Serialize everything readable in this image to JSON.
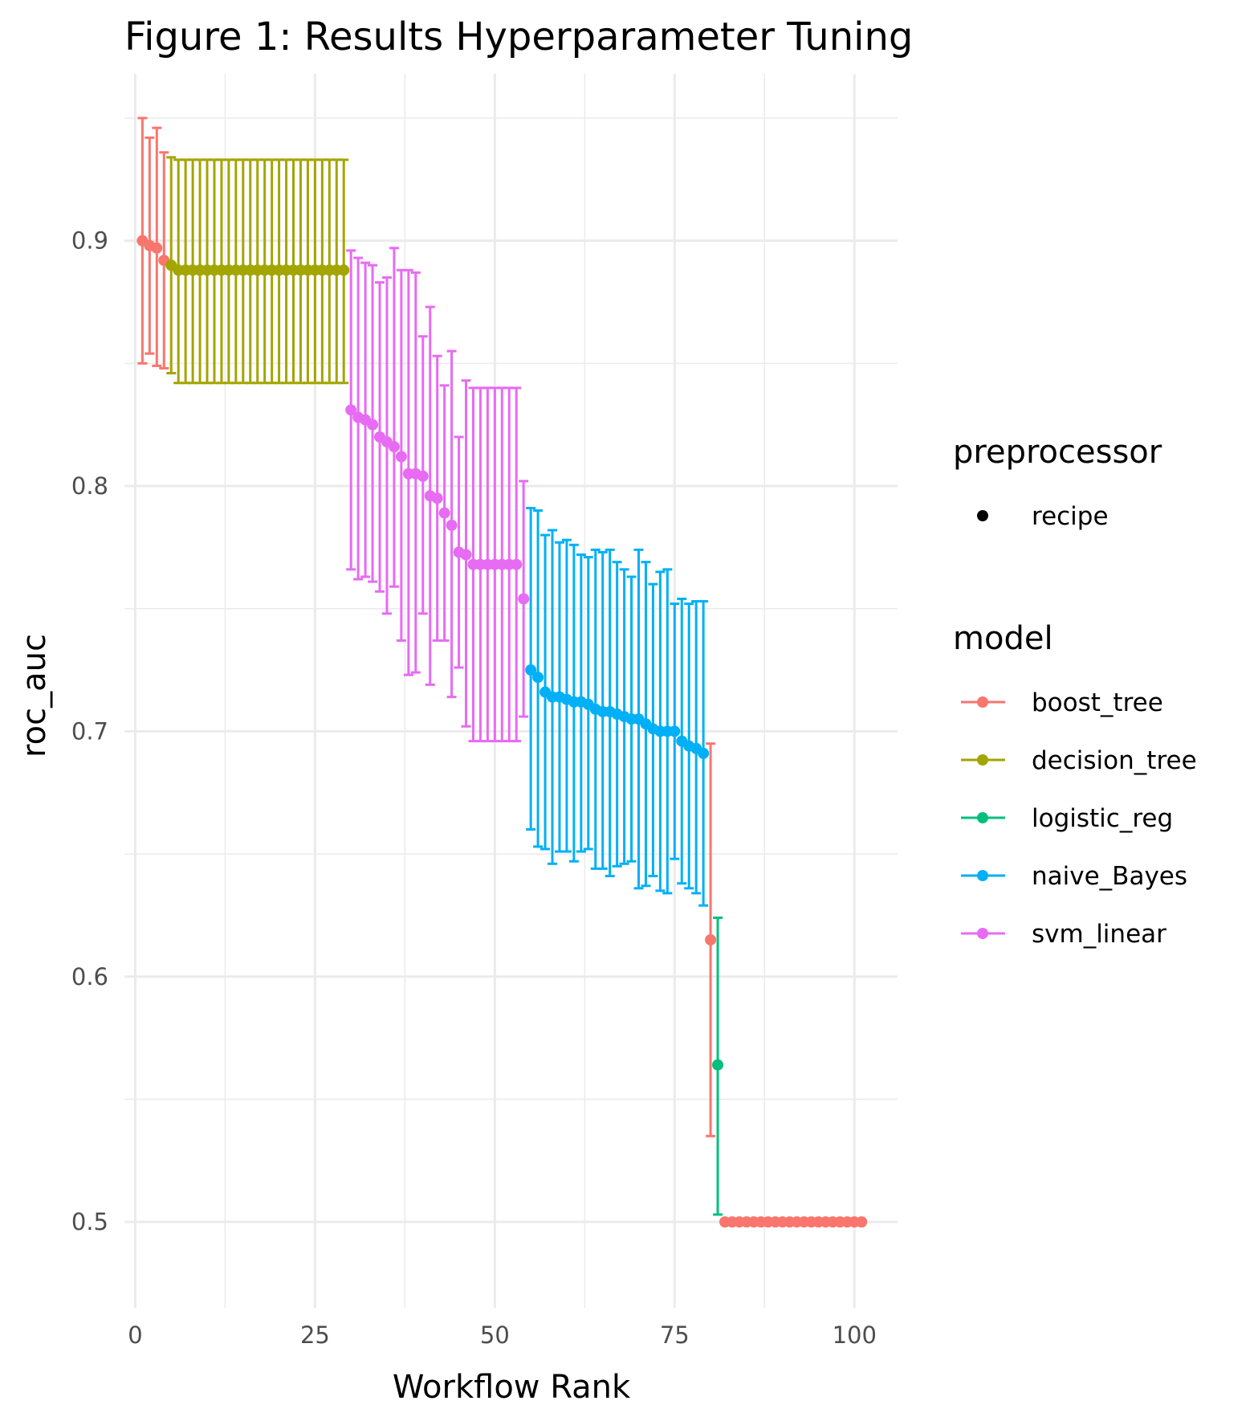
{
  "chart_data": {
    "type": "scatter",
    "title": "Figure 1: Results Hyperparameter Tuning",
    "xlabel": "Workflow Rank",
    "ylabel": "roc_auc",
    "xlim": [
      -1.5,
      106
    ],
    "ylim": [
      0.465,
      0.968
    ],
    "x_ticks": [
      0,
      25,
      50,
      75,
      100
    ],
    "x_tick_labels": [
      "0",
      "25",
      "50",
      "75",
      "100"
    ],
    "y_ticks": [
      0.5,
      0.6,
      0.7,
      0.8,
      0.9
    ],
    "y_tick_labels": [
      "0.5",
      "0.6",
      "0.7",
      "0.8",
      "0.9"
    ],
    "grid": true,
    "error_bars": true,
    "legend_position": "right",
    "legend": {
      "preprocessor": {
        "title": "preprocessor",
        "items": [
          {
            "label": "recipe"
          }
        ]
      },
      "model": {
        "title": "model",
        "items": [
          {
            "label": "boost_tree",
            "color": "#F8766D"
          },
          {
            "label": "decision_tree",
            "color": "#A3A500"
          },
          {
            "label": "logistic_reg",
            "color": "#00BF7D"
          },
          {
            "label": "naive_Bayes",
            "color": "#00B0F6"
          },
          {
            "label": "svm_linear",
            "color": "#E76BF3"
          }
        ]
      }
    },
    "series": [
      {
        "name": "boost_tree",
        "color": "#F8766D",
        "x": [
          1,
          2,
          3,
          4,
          80,
          82,
          83,
          84,
          85,
          86,
          87,
          88,
          89,
          90,
          91,
          92,
          93,
          94,
          95,
          96,
          97,
          98,
          99,
          100,
          101
        ],
        "y": [
          0.9,
          0.898,
          0.897,
          0.892,
          0.615,
          0.5,
          0.5,
          0.5,
          0.5,
          0.5,
          0.5,
          0.5,
          0.5,
          0.5,
          0.5,
          0.5,
          0.5,
          0.5,
          0.5,
          0.5,
          0.5,
          0.5,
          0.5,
          0.5,
          0.5
        ],
        "lower": [
          0.85,
          0.854,
          0.849,
          0.848,
          0.535,
          0.5,
          0.5,
          0.5,
          0.5,
          0.5,
          0.5,
          0.5,
          0.5,
          0.5,
          0.5,
          0.5,
          0.5,
          0.5,
          0.5,
          0.5,
          0.5,
          0.5,
          0.5,
          0.5,
          0.5
        ],
        "upper": [
          0.95,
          0.942,
          0.946,
          0.936,
          0.695,
          0.5,
          0.5,
          0.5,
          0.5,
          0.5,
          0.5,
          0.5,
          0.5,
          0.5,
          0.5,
          0.5,
          0.5,
          0.5,
          0.5,
          0.5,
          0.5,
          0.5,
          0.5,
          0.5,
          0.5
        ]
      },
      {
        "name": "decision_tree",
        "color": "#A3A500",
        "x": [
          5,
          6,
          7,
          8,
          9,
          10,
          11,
          12,
          13,
          14,
          15,
          16,
          17,
          18,
          19,
          20,
          21,
          22,
          23,
          24,
          25,
          26,
          27,
          28,
          29
        ],
        "y": [
          0.89,
          0.888,
          0.888,
          0.888,
          0.888,
          0.888,
          0.888,
          0.888,
          0.888,
          0.888,
          0.888,
          0.888,
          0.888,
          0.888,
          0.888,
          0.888,
          0.888,
          0.888,
          0.888,
          0.888,
          0.888,
          0.888,
          0.888,
          0.888,
          0.888
        ],
        "lower": [
          0.846,
          0.842,
          0.842,
          0.842,
          0.842,
          0.842,
          0.842,
          0.842,
          0.842,
          0.842,
          0.842,
          0.842,
          0.842,
          0.842,
          0.842,
          0.842,
          0.842,
          0.842,
          0.842,
          0.842,
          0.842,
          0.842,
          0.842,
          0.842,
          0.842
        ],
        "upper": [
          0.934,
          0.933,
          0.933,
          0.933,
          0.933,
          0.933,
          0.933,
          0.933,
          0.933,
          0.933,
          0.933,
          0.933,
          0.933,
          0.933,
          0.933,
          0.933,
          0.933,
          0.933,
          0.933,
          0.933,
          0.933,
          0.933,
          0.933,
          0.933,
          0.933
        ]
      },
      {
        "name": "svm_linear",
        "color": "#E76BF3",
        "x": [
          30,
          31,
          32,
          33,
          34,
          35,
          36,
          37,
          38,
          39,
          40,
          41,
          42,
          43,
          44,
          45,
          46,
          47,
          48,
          49,
          50,
          51,
          52,
          53,
          54
        ],
        "y": [
          0.831,
          0.828,
          0.827,
          0.825,
          0.82,
          0.818,
          0.816,
          0.812,
          0.805,
          0.805,
          0.804,
          0.796,
          0.795,
          0.789,
          0.784,
          0.773,
          0.772,
          0.768,
          0.768,
          0.768,
          0.768,
          0.768,
          0.768,
          0.768,
          0.754
        ],
        "lower": [
          0.766,
          0.762,
          0.763,
          0.761,
          0.757,
          0.748,
          0.759,
          0.737,
          0.723,
          0.724,
          0.748,
          0.719,
          0.737,
          0.737,
          0.714,
          0.726,
          0.702,
          0.696,
          0.696,
          0.696,
          0.696,
          0.696,
          0.696,
          0.696,
          0.706
        ],
        "upper": [
          0.896,
          0.893,
          0.891,
          0.89,
          0.883,
          0.885,
          0.897,
          0.888,
          0.888,
          0.887,
          0.861,
          0.873,
          0.853,
          0.841,
          0.855,
          0.82,
          0.843,
          0.84,
          0.84,
          0.84,
          0.84,
          0.84,
          0.84,
          0.84,
          0.802
        ]
      },
      {
        "name": "naive_Bayes",
        "color": "#00B0F6",
        "x": [
          55,
          56,
          57,
          58,
          59,
          60,
          61,
          62,
          63,
          64,
          65,
          66,
          67,
          68,
          69,
          70,
          71,
          72,
          73,
          74,
          75,
          76,
          77,
          78,
          79
        ],
        "y": [
          0.725,
          0.722,
          0.716,
          0.714,
          0.714,
          0.713,
          0.712,
          0.712,
          0.711,
          0.709,
          0.708,
          0.708,
          0.707,
          0.706,
          0.705,
          0.705,
          0.703,
          0.701,
          0.7,
          0.7,
          0.7,
          0.696,
          0.694,
          0.693,
          0.691
        ],
        "lower": [
          0.66,
          0.653,
          0.652,
          0.646,
          0.651,
          0.651,
          0.647,
          0.651,
          0.652,
          0.644,
          0.644,
          0.641,
          0.645,
          0.646,
          0.647,
          0.636,
          0.637,
          0.641,
          0.635,
          0.634,
          0.648,
          0.638,
          0.636,
          0.634,
          0.629
        ],
        "upper": [
          0.791,
          0.79,
          0.78,
          0.782,
          0.777,
          0.778,
          0.776,
          0.772,
          0.771,
          0.774,
          0.773,
          0.774,
          0.769,
          0.766,
          0.763,
          0.774,
          0.769,
          0.76,
          0.765,
          0.766,
          0.752,
          0.754,
          0.752,
          0.753,
          0.753
        ]
      },
      {
        "name": "logistic_reg",
        "color": "#00BF7D",
        "x": [
          81
        ],
        "y": [
          0.564
        ],
        "lower": [
          0.503
        ],
        "upper": [
          0.624
        ]
      }
    ]
  }
}
